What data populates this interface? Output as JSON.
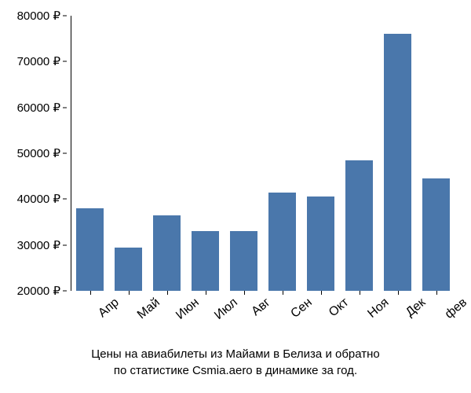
{
  "chart": {
    "type": "bar",
    "categories": [
      "Апр",
      "Май",
      "Июн",
      "Июл",
      "Авг",
      "Сен",
      "Окт",
      "Ноя",
      "Дек",
      "фев"
    ],
    "values": [
      38000,
      29500,
      36500,
      33000,
      33000,
      41500,
      40500,
      48500,
      76000,
      44500
    ],
    "bar_color": "#4a77ab",
    "background_color": "#ffffff",
    "ylim": [
      20000,
      80000
    ],
    "ytick_step": 10000,
    "ytick_labels": [
      "20000 ₽",
      "30000 ₽",
      "40000 ₽",
      "50000 ₽",
      "60000 ₽",
      "70000 ₽",
      "80000 ₽"
    ],
    "ytick_values": [
      20000,
      30000,
      40000,
      50000,
      60000,
      70000,
      80000
    ],
    "label_fontsize": 15,
    "xlabel_fontsize": 16,
    "xlabel_rotation": -40,
    "bar_width": 0.72,
    "text_color": "#000000"
  },
  "caption": {
    "line1": "Цены на авиабилеты из Майами в Белиза и обратно",
    "line2": "по статистике Csmia.aero в динамике за год."
  }
}
